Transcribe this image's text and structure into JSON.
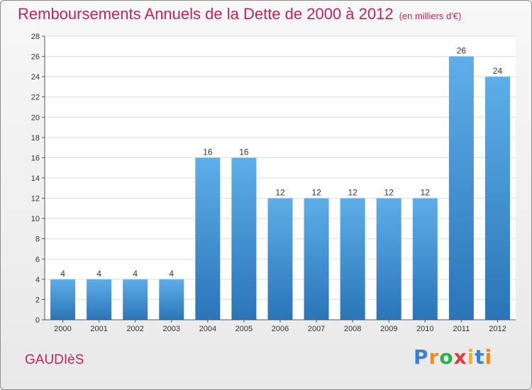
{
  "header": {
    "title": "Remboursements Annuels de la Dette de 2000 à 2012",
    "unit": "(en milliers d'€)"
  },
  "footer": {
    "commune": "GAUDIèS",
    "logo_letters": [
      "P",
      "r",
      "o",
      "x",
      "i",
      "t",
      "i"
    ],
    "logo_colors": [
      "#3a7fd1",
      "#f08a1c",
      "#2fae4a",
      "#e23b3b",
      "#f0b41c",
      "#3a7fd1",
      "#f08a1c"
    ]
  },
  "chart_data": {
    "type": "bar",
    "title": "Remboursements Annuels de la Dette de 2000 à 2012",
    "categories": [
      "2000",
      "2001",
      "2002",
      "2003",
      "2004",
      "2005",
      "2006",
      "2007",
      "2008",
      "2009",
      "2010",
      "2011",
      "2012"
    ],
    "values": [
      4,
      4,
      4,
      4,
      16,
      16,
      12,
      12,
      12,
      12,
      12,
      26,
      24
    ],
    "data_labels": [
      "4",
      "4",
      "4",
      "4",
      "16",
      "16",
      "12",
      "12",
      "12",
      "12",
      "12",
      "26",
      "24"
    ],
    "y_ticks": [
      "0",
      "2",
      "4",
      "6",
      "8",
      "10",
      "12",
      "14",
      "16",
      "18",
      "20",
      "22",
      "24",
      "26",
      "28"
    ],
    "ylim": [
      0,
      28
    ],
    "xlabel": "",
    "ylabel": "",
    "grid": true,
    "bar_color": "#3d8fd4",
    "bar_color_light": "#5eaee8",
    "bar_color_dark": "#2a74b8"
  }
}
